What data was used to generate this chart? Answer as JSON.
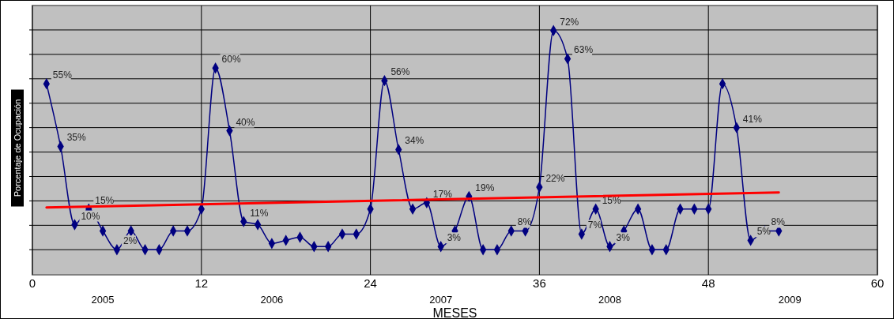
{
  "chart_data": {
    "type": "line",
    "ylabel": "Porcentaje de Ocupación",
    "xlabel": "MESES",
    "x": [
      1,
      2,
      3,
      4,
      5,
      6,
      7,
      8,
      9,
      10,
      11,
      12,
      13,
      14,
      15,
      16,
      17,
      18,
      19,
      20,
      21,
      22,
      23,
      24,
      25,
      26,
      27,
      28,
      29,
      30,
      31,
      32,
      33,
      34,
      35,
      36,
      37,
      38,
      39,
      40,
      41,
      42,
      43,
      44,
      45,
      46,
      47,
      48,
      49,
      50,
      51,
      52,
      53
    ],
    "xlim": [
      0,
      60
    ],
    "xticks": [
      0,
      12,
      24,
      36,
      48,
      60
    ],
    "ylim": [
      -6,
      80
    ],
    "yticks": [
      {
        "value": 2,
        "label": null
      },
      {
        "value": 9.8,
        "label": null
      },
      {
        "value": 17.6,
        "label": null
      },
      {
        "value": 25.4,
        "label": null
      },
      {
        "value": 33.2,
        "label": null
      },
      {
        "value": 41,
        "label": null
      },
      {
        "value": 48.8,
        "label": null
      },
      {
        "value": 56.6,
        "label": null
      },
      {
        "value": 64.4,
        "label": null
      },
      {
        "value": 72.2,
        "label": null
      }
    ],
    "tick_labels": "x",
    "grid": true,
    "marker": "diamond",
    "series": [
      {
        "color": "#000080",
        "values": [
          55,
          35,
          10,
          15,
          8,
          2,
          8,
          2,
          2,
          8,
          8,
          15,
          60,
          40,
          11,
          10,
          4,
          5,
          6,
          3,
          3,
          7,
          7,
          15,
          56,
          34,
          15,
          17,
          3,
          8,
          19,
          2,
          2,
          8,
          8,
          22,
          72,
          63,
          7,
          15,
          3,
          8,
          15,
          2,
          2,
          15,
          15,
          15,
          55,
          41,
          5,
          8,
          8
        ],
        "value_labels": [
          "55%",
          "35%",
          "10%",
          "15%",
          null,
          "2%",
          null,
          null,
          null,
          null,
          null,
          null,
          "60%",
          "40%",
          "11%",
          null,
          null,
          null,
          null,
          null,
          null,
          null,
          null,
          null,
          "56%",
          "34%",
          null,
          "17%",
          "3%",
          null,
          "19%",
          null,
          null,
          "8%",
          null,
          "22%",
          "72%",
          "63%",
          "7%",
          "15%",
          "3%",
          null,
          null,
          null,
          null,
          null,
          null,
          null,
          null,
          "41%",
          "5%",
          "8%",
          null
        ]
      },
      {
        "type": "line",
        "color": "#ff0000",
        "marker": "none",
        "x": [
          1,
          53
        ],
        "values": [
          15.5,
          20.3
        ]
      }
    ],
    "annotations": [
      "2005",
      "2006",
      "2007",
      "2008",
      "2009"
    ]
  }
}
